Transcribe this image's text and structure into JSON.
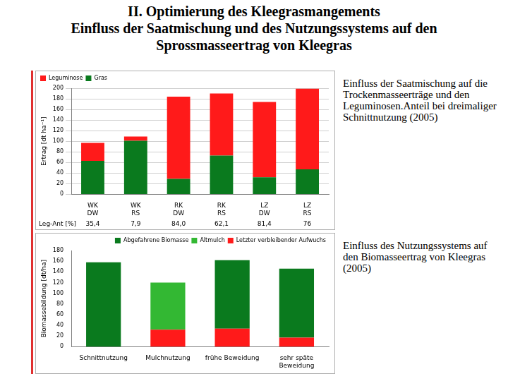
{
  "title": [
    "II. Optimierung des Kleegrasmangements",
    "Einfluss der Saatmischung und des Nutzungssystems auf den",
    "Sprossmasseertrag von Kleegras"
  ],
  "chart_data": [
    {
      "type": "bar",
      "stacked": true,
      "subtitle": "Einfluss der Saatmischung auf die Trockenmasseerträge und den Leguminosen.Anteil bei dreimaliger Schnittnutzung (2005)",
      "y_label": "Ertrag [dt ha⁻¹]",
      "categories": [
        [
          "WK",
          "DW"
        ],
        [
          "WK",
          "RS"
        ],
        [
          "RK",
          "DW"
        ],
        [
          "RK",
          "RS"
        ],
        [
          "LZ",
          "DW"
        ],
        [
          "LZ",
          "RS"
        ]
      ],
      "series": [
        {
          "name": "Gras",
          "color": "#0a7a1e",
          "values": [
            63,
            101,
            29,
            73,
            32,
            47
          ]
        },
        {
          "name": "Leguminose",
          "color": "#ff1a1a",
          "values": [
            34,
            8,
            155,
            117,
            142,
            152
          ]
        }
      ],
      "leg_ant": {
        "label": "Leg-Ant [%]",
        "values": [
          35.4,
          7.9,
          84.0,
          62.1,
          81.4,
          76
        ],
        "value_labels": [
          "35,4",
          "7,9",
          "84,0",
          "62,1",
          "81,4",
          "76"
        ]
      },
      "ylim": [
        0,
        200
      ],
      "yticks": [
        0,
        20,
        40,
        60,
        80,
        100,
        120,
        140,
        160,
        180,
        200
      ],
      "grid": true,
      "legend": "top-left"
    },
    {
      "type": "bar",
      "stacked": true,
      "subtitle": "Einfluss des Nutzungssystems auf den Biomasseertrag von Kleegras (2005)",
      "y_label": "Biomassebildung [dt/ha]",
      "categories": [
        "Schnittnutzung",
        "Mulchnutzung",
        "frühe Beweidung",
        [
          "sehr späte",
          "Beweidung"
        ]
      ],
      "series": [
        {
          "name": "Letzter verbleibender Aufwuchs",
          "color": "#ff1a1a",
          "values": [
            0,
            32,
            34,
            17
          ]
        },
        {
          "name": "Altmulch",
          "color": "#33b833",
          "values": [
            0,
            88,
            0,
            0
          ]
        },
        {
          "name": "Abgefahrene Biomasse",
          "color": "#0a7a1e",
          "values": [
            158,
            0,
            128,
            129
          ]
        }
      ],
      "ylim": [
        0,
        180
      ],
      "yticks": [
        0,
        20,
        40,
        60,
        80,
        100,
        120,
        140,
        160,
        180
      ],
      "grid": false,
      "legend": "top-right"
    }
  ]
}
